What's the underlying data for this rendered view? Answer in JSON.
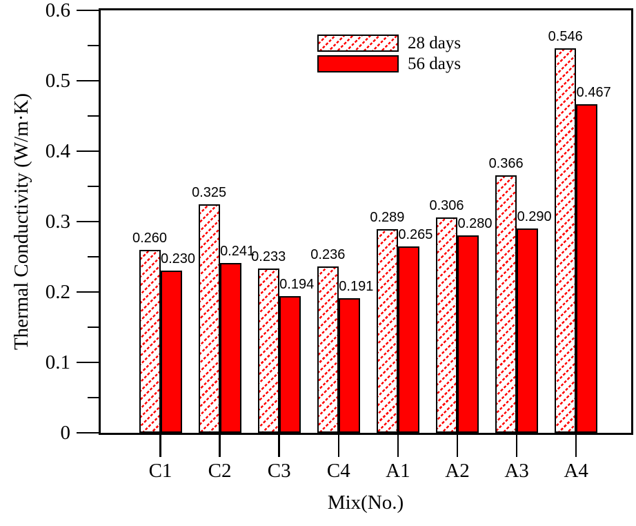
{
  "chart_data": {
    "type": "bar",
    "title": "",
    "xlabel": "Mix(No.)",
    "ylabel": "Thermal Conductivity (W/m·K)",
    "categories": [
      "C1",
      "C2",
      "C3",
      "C4",
      "A1",
      "A2",
      "A3",
      "A4"
    ],
    "series": [
      {
        "name": "28 days",
        "style": "hatch",
        "values": [
          0.26,
          0.325,
          0.233,
          0.236,
          0.289,
          0.306,
          0.366,
          0.546
        ],
        "labels": [
          "0.260",
          "0.325",
          "0.233",
          "0.236",
          "0.289",
          "0.306",
          "0.366",
          "0.546"
        ]
      },
      {
        "name": "56 days",
        "style": "solid",
        "values": [
          0.23,
          0.241,
          0.194,
          0.191,
          0.265,
          0.28,
          0.29,
          0.467
        ],
        "labels": [
          "0.230",
          "0.241",
          "0.194",
          "0.191",
          "0.265",
          "0.280",
          "0.290",
          "0.467"
        ]
      }
    ],
    "ylim": [
      0,
      0.6
    ],
    "y_major_step": 0.1,
    "y_minor_step": 0.05,
    "y_tick_labels": [
      "0",
      "0.1",
      "0.2",
      "0.3",
      "0.4",
      "0.5",
      "0.6"
    ],
    "legend_position": "top-center-inside",
    "grid": false,
    "colors": {
      "bar_fill": "#ff0000",
      "hatch_line": "#ff0000",
      "bar_edge": "#000000",
      "frame": "#000000",
      "text": "#000000",
      "background": "#ffffff"
    }
  }
}
